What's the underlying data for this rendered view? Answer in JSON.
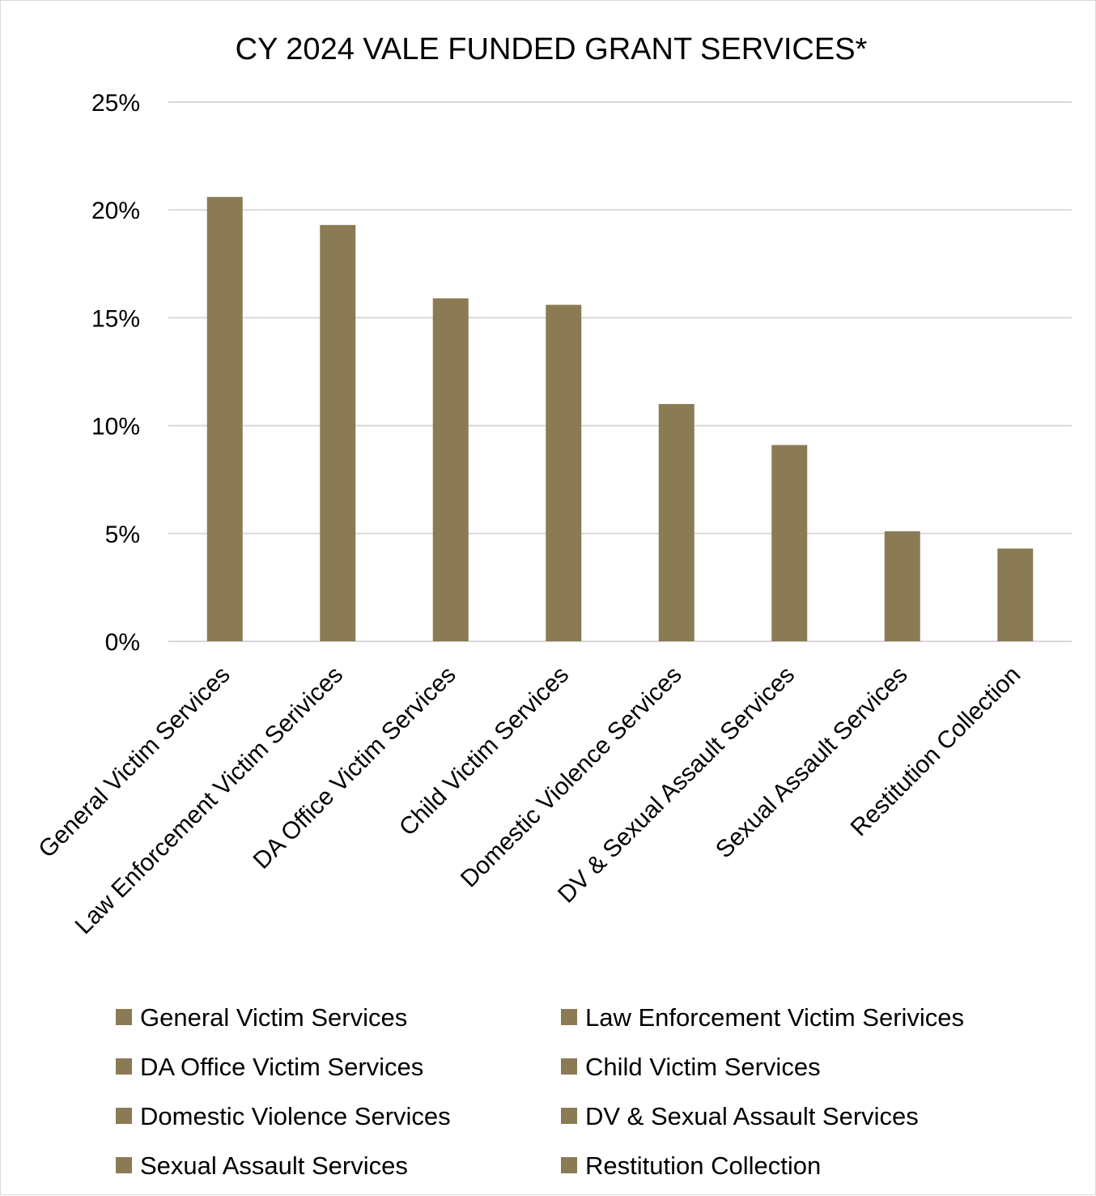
{
  "chart_data": {
    "type": "bar",
    "title": "CY 2024 VALE FUNDED GRANT SERVICES*",
    "xlabel": "",
    "ylabel": "",
    "ylim": [
      0,
      25
    ],
    "yticks": [
      "0%",
      "5%",
      "10%",
      "15%",
      "20%",
      "25%"
    ],
    "ytick_values": [
      0,
      5,
      10,
      15,
      20,
      25
    ],
    "grid": true,
    "legend_position": "bottom",
    "bar_color": "#8b7b55",
    "categories": [
      "General Victim Services",
      "Law Enforcement Victim Serivices",
      "DA Office Victim Services",
      "Child Victim Services",
      "Domestic Violence Services",
      "DV & Sexual Assault Services",
      "Sexual Assault Services",
      "Restitution Collection"
    ],
    "values": [
      20.6,
      19.3,
      15.9,
      15.6,
      11.0,
      9.1,
      5.1,
      4.3
    ],
    "legend": [
      "General Victim Services",
      "Law Enforcement Victim Serivices",
      "DA Office Victim Services",
      "Child Victim Services",
      "Domestic Violence Services",
      "DV & Sexual Assault Services",
      "Sexual Assault Services",
      "Restitution Collection"
    ]
  }
}
